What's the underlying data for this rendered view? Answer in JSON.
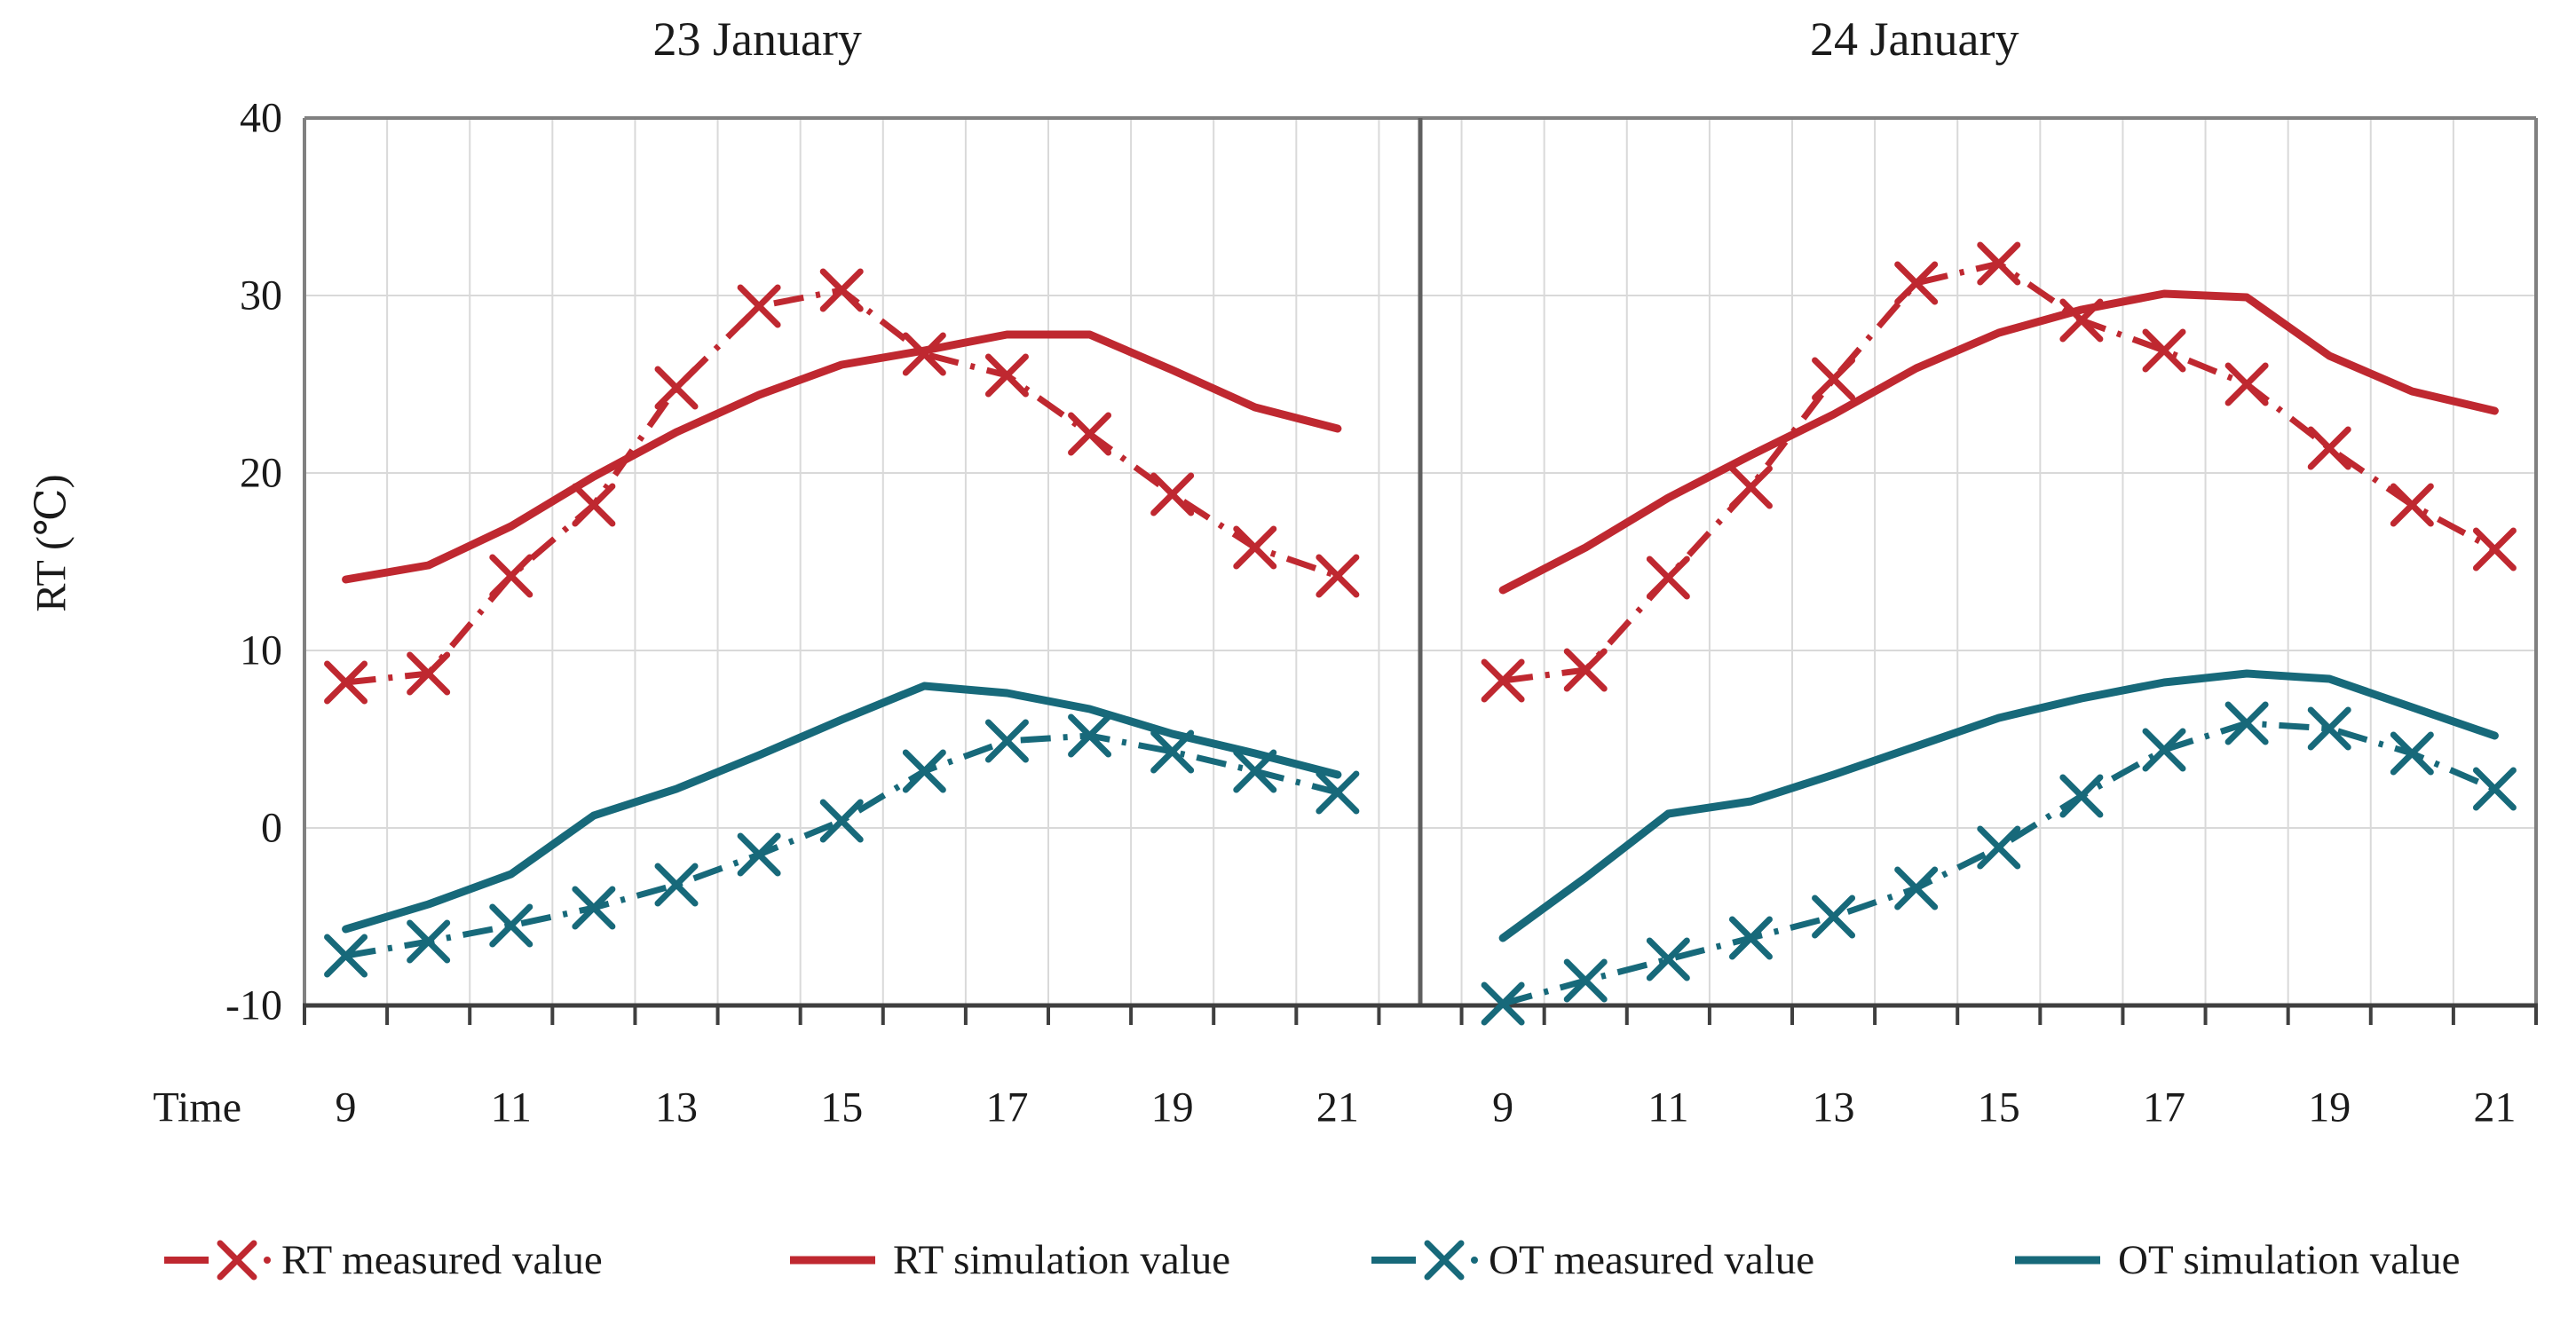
{
  "figure": {
    "description": "Two-panel line chart comparing measured and simulated room temperature (RT) and outdoor temperature (OT) on 23 and 24 January"
  },
  "chart_data": {
    "type": "line",
    "ylabel": "RT (℃)",
    "xlabel": "Time",
    "ylim": [
      -10,
      40
    ],
    "grid": true,
    "legend_position": "bottom",
    "ytick_values": [
      40,
      30,
      20,
      10,
      0,
      -10
    ],
    "ytick_labels": [
      "40",
      "30",
      "20",
      "10",
      "0",
      "-10"
    ],
    "hours": [
      9,
      10,
      11,
      12,
      13,
      14,
      15,
      16,
      17,
      18,
      19,
      20,
      21
    ],
    "xtick_hours": [
      9,
      11,
      13,
      15,
      17,
      19,
      21
    ],
    "xtick_labels": [
      "9",
      "11",
      "13",
      "15",
      "17",
      "19",
      "21"
    ],
    "colors": {
      "rt": "#bf2830",
      "ot": "#17697a",
      "grid": "#d9d9d9",
      "border": "#808080",
      "axis": "#3f3f3f",
      "divider": "#5f5f5f",
      "text": "#1a1a1a"
    },
    "panels": [
      {
        "title": "23 January",
        "series": [
          {
            "id": "ot_sim",
            "name": "OT simulation value",
            "color_key": "ot",
            "style": "solid",
            "values": [
              -5.7,
              -4.3,
              -2.6,
              0.7,
              2.2,
              4.1,
              6.1,
              8.0,
              7.6,
              6.7,
              5.3,
              4.2,
              3.0
            ]
          },
          {
            "id": "ot_measured",
            "name": "OT measured value",
            "color_key": "ot",
            "style": "dashed-x",
            "values": [
              -7.2,
              -6.4,
              -5.5,
              -4.5,
              -3.2,
              -1.5,
              0.4,
              3.2,
              4.9,
              5.2,
              4.3,
              3.2,
              2.0
            ]
          },
          {
            "id": "rt_sim",
            "name": "RT simulation value",
            "color_key": "rt",
            "style": "solid",
            "values": [
              14.0,
              14.8,
              17.0,
              19.8,
              22.3,
              24.4,
              26.1,
              26.9,
              27.8,
              27.8,
              25.8,
              23.7,
              22.5
            ]
          },
          {
            "id": "rt_measured",
            "name": "RT measured value",
            "color_key": "rt",
            "style": "dashed-x",
            "values": [
              8.2,
              8.7,
              14.2,
              18.2,
              24.8,
              29.4,
              30.3,
              26.7,
              25.5,
              22.2,
              18.8,
              15.8,
              14.2
            ]
          }
        ]
      },
      {
        "title": "24 January",
        "series": [
          {
            "id": "ot_sim",
            "name": "OT simulation value",
            "color_key": "ot",
            "style": "solid",
            "values": [
              -6.2,
              -2.8,
              0.8,
              1.5,
              3.0,
              4.6,
              6.2,
              7.3,
              8.2,
              8.7,
              8.4,
              6.8,
              5.2
            ]
          },
          {
            "id": "ot_measured",
            "name": "OT measured value",
            "color_key": "ot",
            "style": "dashed-x",
            "values": [
              -9.9,
              -8.6,
              -7.4,
              -6.2,
              -5.0,
              -3.4,
              -1.1,
              1.8,
              4.4,
              5.9,
              5.6,
              4.2,
              2.2
            ]
          },
          {
            "id": "rt_sim",
            "name": "RT simulation value",
            "color_key": "rt",
            "style": "solid",
            "values": [
              13.4,
              15.8,
              18.6,
              21.0,
              23.3,
              25.9,
              27.9,
              29.2,
              30.1,
              29.9,
              26.6,
              24.6,
              23.5
            ]
          },
          {
            "id": "rt_measured",
            "name": "RT measured value",
            "color_key": "rt",
            "style": "dashed-x",
            "values": [
              8.3,
              8.9,
              14.1,
              19.2,
              25.3,
              30.7,
              31.8,
              28.6,
              26.9,
              25.0,
              21.4,
              18.2,
              15.7
            ]
          }
        ]
      }
    ],
    "legend": [
      {
        "label": "RT measured value",
        "color_key": "rt",
        "style": "dashed-x"
      },
      {
        "label": "RT  simulation value",
        "color_key": "rt",
        "style": "solid"
      },
      {
        "label": "OT measured value",
        "color_key": "ot",
        "style": "dashed-x"
      },
      {
        "label": "OT simulation value",
        "color_key": "ot",
        "style": "solid"
      }
    ]
  }
}
